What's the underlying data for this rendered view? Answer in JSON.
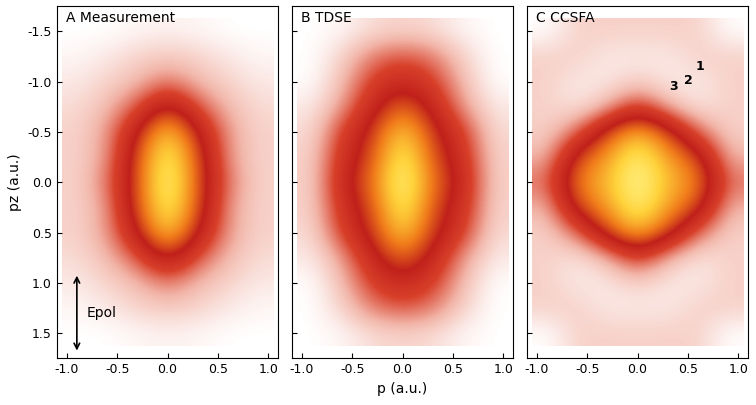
{
  "chart_data": [
    {
      "type": "heatmap",
      "title": "A Measurement",
      "y_label": "pz (a.u.)",
      "annotations": [
        "Epol"
      ],
      "x": [
        -0.9,
        -0.6,
        -0.3,
        0.0,
        0.3,
        0.6,
        0.9
      ],
      "y": [
        -1.5,
        -1.25,
        -1.0,
        -0.75,
        -0.5,
        -0.25,
        0.0,
        0.25,
        0.5,
        0.75,
        1.0,
        1.25,
        1.5
      ],
      "cells": [
        [
          0.0,
          0.0,
          0.02,
          0.03,
          0.02,
          0.0,
          0.0
        ],
        [
          0.02,
          0.05,
          0.1,
          0.12,
          0.1,
          0.05,
          0.02
        ],
        [
          0.05,
          0.1,
          0.15,
          0.25,
          0.15,
          0.1,
          0.05
        ],
        [
          0.08,
          0.15,
          0.3,
          0.55,
          0.3,
          0.15,
          0.08
        ],
        [
          0.1,
          0.2,
          0.5,
          0.85,
          0.5,
          0.2,
          0.1
        ],
        [
          0.1,
          0.2,
          0.6,
          0.95,
          0.6,
          0.2,
          0.1
        ],
        [
          0.1,
          0.25,
          0.6,
          1.0,
          0.6,
          0.25,
          0.1
        ],
        [
          0.1,
          0.2,
          0.6,
          0.95,
          0.6,
          0.2,
          0.1
        ],
        [
          0.1,
          0.2,
          0.5,
          0.85,
          0.5,
          0.2,
          0.1
        ],
        [
          0.08,
          0.15,
          0.3,
          0.55,
          0.3,
          0.15,
          0.08
        ],
        [
          0.05,
          0.1,
          0.15,
          0.25,
          0.15,
          0.1,
          0.05
        ],
        [
          0.02,
          0.05,
          0.1,
          0.12,
          0.1,
          0.05,
          0.02
        ],
        [
          0.0,
          0.0,
          0.02,
          0.03,
          0.02,
          0.0,
          0.0
        ]
      ],
      "xlim": [
        -1.1,
        1.1
      ],
      "ylim": [
        1.75,
        -1.75
      ],
      "xticks": [
        -1.0,
        -0.5,
        0.0,
        0.5,
        1.0
      ],
      "yticks": [
        -1.5,
        -1.0,
        -0.5,
        0.0,
        0.5,
        1.0,
        1.5
      ]
    },
    {
      "type": "heatmap",
      "title": "B TDSE",
      "x_label": "p (a.u.)",
      "tick_labels": "x",
      "x": [
        -0.9,
        -0.6,
        -0.3,
        0.0,
        0.3,
        0.6,
        0.9
      ],
      "y": [
        -1.5,
        -1.25,
        -1.0,
        -0.75,
        -0.5,
        -0.25,
        0.0,
        0.25,
        0.5,
        0.75,
        1.0,
        1.25,
        1.5
      ],
      "cells": [
        [
          0.0,
          0.02,
          0.08,
          0.1,
          0.08,
          0.02,
          0.0
        ],
        [
          0.0,
          0.1,
          0.25,
          0.3,
          0.25,
          0.1,
          0.0
        ],
        [
          0.0,
          0.15,
          0.35,
          0.45,
          0.35,
          0.15,
          0.0
        ],
        [
          0.05,
          0.2,
          0.45,
          0.65,
          0.45,
          0.2,
          0.05
        ],
        [
          0.08,
          0.35,
          0.55,
          0.85,
          0.55,
          0.35,
          0.08
        ],
        [
          0.1,
          0.4,
          0.6,
          0.95,
          0.6,
          0.4,
          0.1
        ],
        [
          0.1,
          0.45,
          0.65,
          1.0,
          0.65,
          0.45,
          0.1
        ],
        [
          0.1,
          0.4,
          0.6,
          0.95,
          0.6,
          0.4,
          0.1
        ],
        [
          0.08,
          0.35,
          0.55,
          0.85,
          0.55,
          0.35,
          0.08
        ],
        [
          0.05,
          0.2,
          0.45,
          0.65,
          0.45,
          0.2,
          0.05
        ],
        [
          0.0,
          0.15,
          0.35,
          0.45,
          0.35,
          0.15,
          0.0
        ],
        [
          0.0,
          0.1,
          0.25,
          0.3,
          0.25,
          0.1,
          0.0
        ],
        [
          0.0,
          0.02,
          0.08,
          0.1,
          0.08,
          0.02,
          0.0
        ]
      ],
      "xlim": [
        -1.1,
        1.1
      ],
      "ylim": [
        1.75,
        -1.75
      ],
      "xticks": [
        -1.0,
        -0.5,
        0.0,
        0.5,
        1.0
      ],
      "yticks": [
        -1.5,
        -1.0,
        -0.5,
        0.0,
        0.5,
        1.0,
        1.5
      ]
    },
    {
      "type": "heatmap",
      "title": "C CCSFA",
      "tick_labels": "x",
      "annotations": [
        "1",
        "2",
        "3"
      ],
      "x": [
        -0.9,
        -0.6,
        -0.3,
        0.0,
        0.3,
        0.6,
        0.9
      ],
      "y": [
        -1.5,
        -1.25,
        -1.0,
        -0.75,
        -0.5,
        -0.25,
        0.0,
        0.25,
        0.5,
        0.75,
        1.0,
        1.25,
        1.5
      ],
      "cells": [
        [
          0.05,
          0.15,
          0.15,
          0.15,
          0.15,
          0.15,
          0.05
        ],
        [
          0.15,
          0.15,
          0.1,
          0.1,
          0.1,
          0.15,
          0.15
        ],
        [
          0.15,
          0.1,
          0.1,
          0.15,
          0.1,
          0.1,
          0.15
        ],
        [
          0.15,
          0.1,
          0.2,
          0.4,
          0.2,
          0.1,
          0.15
        ],
        [
          0.15,
          0.3,
          0.6,
          0.8,
          0.6,
          0.3,
          0.15
        ],
        [
          0.2,
          0.6,
          0.75,
          0.95,
          0.75,
          0.6,
          0.2
        ],
        [
          0.3,
          0.7,
          0.8,
          1.0,
          0.8,
          0.7,
          0.3
        ],
        [
          0.2,
          0.6,
          0.75,
          0.95,
          0.75,
          0.6,
          0.2
        ],
        [
          0.15,
          0.3,
          0.6,
          0.8,
          0.6,
          0.3,
          0.15
        ],
        [
          0.15,
          0.1,
          0.2,
          0.4,
          0.2,
          0.1,
          0.15
        ],
        [
          0.15,
          0.1,
          0.1,
          0.15,
          0.1,
          0.1,
          0.15
        ],
        [
          0.15,
          0.15,
          0.1,
          0.1,
          0.1,
          0.15,
          0.15
        ],
        [
          0.05,
          0.15,
          0.15,
          0.15,
          0.15,
          0.15,
          0.05
        ]
      ],
      "xlim": [
        -1.1,
        1.1
      ],
      "ylim": [
        1.75,
        -1.75
      ],
      "xticks": [
        -1.0,
        -0.5,
        0.0,
        0.5,
        1.0
      ],
      "yticks": [
        -1.5,
        -1.0,
        -0.5,
        0.0,
        0.5,
        1.0,
        1.5
      ]
    }
  ]
}
